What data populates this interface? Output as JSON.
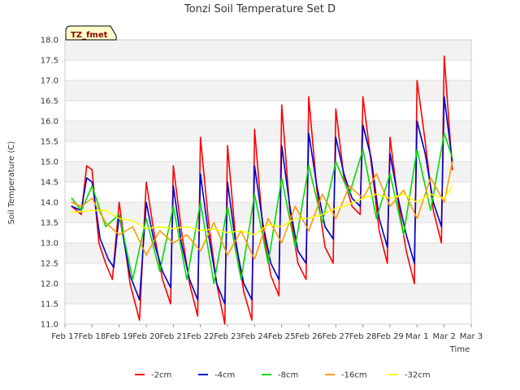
{
  "chart_data": {
    "type": "line",
    "title": "Tonzi Soil Temperature Set D",
    "xlabel": "Time",
    "ylabel": "Soil Temperature (C)",
    "badge": "TZ_fmet",
    "ylim": [
      11.0,
      18.0
    ],
    "xlim": [
      0,
      15
    ],
    "grid": "horizontal bands",
    "legend_position": "bottom",
    "y_ticks": [
      "11.0",
      "11.5",
      "12.0",
      "12.5",
      "13.0",
      "13.5",
      "14.0",
      "14.5",
      "15.0",
      "15.5",
      "16.0",
      "16.5",
      "17.0",
      "17.5",
      "18.0"
    ],
    "x_ticks": [
      "Feb 17",
      "Feb 18",
      "Feb 19",
      "Feb 20",
      "Feb 21",
      "Feb 22",
      "Feb 23",
      "Feb 24",
      "Feb 25",
      "Feb 26",
      "Feb 27",
      "Feb 28",
      "Feb 29",
      "Mar 1",
      "Mar 2",
      "Mar 3"
    ],
    "series": [
      {
        "name": "-2cm",
        "color": "#ff0000",
        "x": [
          0.25,
          0.6,
          0.8,
          1.0,
          1.25,
          1.5,
          1.75,
          2.0,
          2.4,
          2.75,
          3.0,
          3.3,
          3.6,
          3.9,
          4.0,
          4.3,
          4.6,
          4.9,
          5.0,
          5.3,
          5.6,
          5.9,
          6.0,
          6.3,
          6.6,
          6.9,
          7.0,
          7.3,
          7.6,
          7.9,
          8.0,
          8.3,
          8.6,
          8.9,
          9.0,
          9.3,
          9.6,
          9.9,
          10.0,
          10.3,
          10.6,
          10.9,
          11.0,
          11.3,
          11.6,
          11.9,
          12.0,
          12.3,
          12.6,
          12.9,
          13.0,
          13.3,
          13.6,
          13.9,
          14.0,
          14.3
        ],
        "values": [
          13.9,
          13.7,
          14.9,
          14.8,
          13.0,
          12.5,
          12.1,
          14.0,
          12.0,
          11.1,
          14.5,
          13.2,
          12.1,
          11.5,
          14.9,
          13.3,
          12.0,
          11.2,
          15.6,
          13.5,
          12.0,
          11.0,
          15.4,
          13.1,
          11.8,
          11.1,
          15.8,
          13.4,
          12.2,
          11.7,
          16.4,
          13.8,
          12.5,
          12.1,
          16.6,
          14.3,
          12.9,
          12.5,
          16.3,
          14.6,
          13.9,
          13.7,
          16.6,
          15.0,
          13.3,
          12.5,
          15.6,
          14.0,
          12.8,
          12.0,
          17.0,
          15.5,
          13.8,
          13.0,
          17.6,
          14.8
        ]
      },
      {
        "name": "-4cm",
        "color": "#0000cc",
        "x": [
          0.25,
          0.6,
          0.8,
          1.0,
          1.3,
          1.6,
          1.8,
          2.0,
          2.4,
          2.75,
          3.0,
          3.3,
          3.6,
          3.9,
          4.0,
          4.3,
          4.6,
          4.9,
          5.0,
          5.3,
          5.6,
          5.9,
          6.0,
          6.3,
          6.6,
          6.9,
          7.0,
          7.3,
          7.6,
          7.9,
          8.0,
          8.3,
          8.6,
          8.9,
          9.0,
          9.3,
          9.6,
          9.9,
          10.0,
          10.3,
          10.6,
          10.9,
          11.0,
          11.3,
          11.6,
          11.9,
          12.0,
          12.3,
          12.6,
          12.9,
          13.0,
          13.3,
          13.6,
          13.9,
          14.0,
          14.3
        ],
        "values": [
          13.9,
          13.8,
          14.6,
          14.5,
          13.1,
          12.6,
          12.4,
          13.7,
          12.2,
          11.6,
          14.0,
          13.0,
          12.3,
          11.9,
          14.4,
          13.0,
          12.1,
          11.6,
          14.7,
          13.2,
          12.0,
          11.5,
          14.5,
          13.0,
          12.0,
          11.6,
          14.9,
          13.5,
          12.5,
          12.1,
          15.4,
          13.9,
          12.8,
          12.5,
          15.7,
          14.4,
          13.4,
          13.1,
          15.6,
          14.7,
          14.1,
          13.9,
          15.9,
          15.1,
          13.6,
          12.9,
          15.2,
          14.1,
          13.2,
          12.5,
          16.0,
          15.2,
          14.0,
          13.4,
          16.6,
          15.0
        ]
      },
      {
        "name": "-8cm",
        "color": "#00dd00",
        "x": [
          0.25,
          0.6,
          1.0,
          1.5,
          2.0,
          2.5,
          3.0,
          3.5,
          4.0,
          4.5,
          5.0,
          5.5,
          6.0,
          6.5,
          7.0,
          7.5,
          8.0,
          8.5,
          9.0,
          9.5,
          10.0,
          10.5,
          11.0,
          11.5,
          12.0,
          12.5,
          13.0,
          13.5,
          14.0,
          14.3
        ],
        "values": [
          14.1,
          13.8,
          14.4,
          13.4,
          13.7,
          12.1,
          13.6,
          12.3,
          13.9,
          12.1,
          14.0,
          12.0,
          13.9,
          12.1,
          14.2,
          12.5,
          14.6,
          12.9,
          14.9,
          13.5,
          15.0,
          14.2,
          15.3,
          13.6,
          14.7,
          13.2,
          15.3,
          13.8,
          15.7,
          15.1
        ]
      },
      {
        "name": "-16cm",
        "color": "#ff9900",
        "x": [
          0.25,
          0.6,
          1.0,
          1.5,
          2.0,
          2.5,
          3.0,
          3.5,
          4.0,
          4.5,
          5.0,
          5.5,
          6.0,
          6.5,
          7.0,
          7.5,
          8.0,
          8.5,
          9.0,
          9.5,
          10.0,
          10.5,
          11.0,
          11.5,
          12.0,
          12.5,
          13.0,
          13.5,
          14.0,
          14.3
        ],
        "values": [
          14.0,
          13.9,
          14.1,
          13.5,
          13.2,
          13.4,
          12.7,
          13.3,
          13.0,
          13.2,
          12.8,
          13.5,
          12.7,
          13.3,
          12.6,
          13.6,
          13.0,
          13.9,
          13.3,
          14.2,
          13.6,
          14.4,
          14.1,
          14.7,
          13.9,
          14.3,
          13.6,
          14.6,
          14.0,
          15.0
        ]
      },
      {
        "name": "-32cm",
        "color": "#ffff00",
        "x": [
          0.25,
          1.0,
          1.5,
          2.0,
          2.5,
          3.0,
          3.5,
          4.0,
          4.5,
          5.0,
          5.5,
          6.0,
          6.5,
          7.0,
          7.5,
          8.0,
          8.5,
          9.0,
          9.5,
          10.0,
          10.5,
          11.0,
          11.5,
          12.0,
          12.5,
          13.0,
          13.5,
          14.0,
          14.3
        ],
        "values": [
          13.75,
          13.8,
          13.8,
          13.6,
          13.55,
          13.35,
          13.4,
          13.35,
          13.4,
          13.3,
          13.35,
          13.25,
          13.3,
          13.2,
          13.45,
          13.4,
          13.6,
          13.6,
          13.7,
          13.85,
          13.95,
          14.1,
          14.2,
          14.1,
          14.2,
          14.0,
          14.2,
          14.1,
          14.4
        ]
      }
    ]
  }
}
